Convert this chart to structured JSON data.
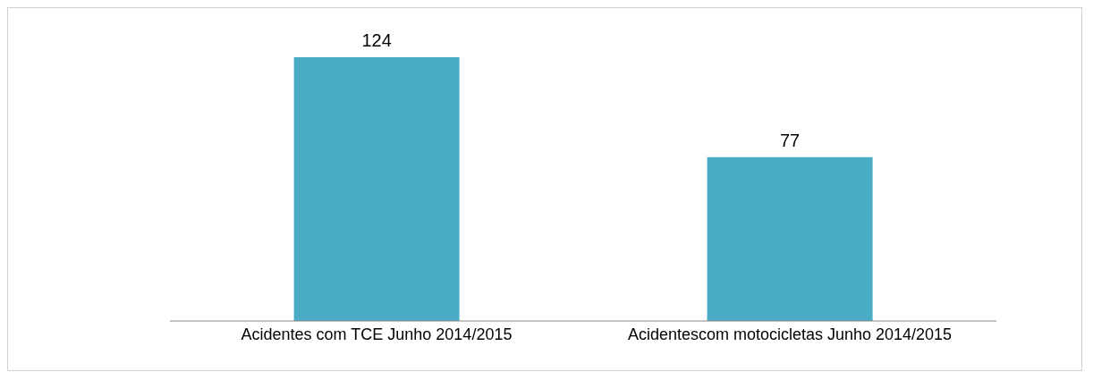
{
  "chart_data": {
    "type": "bar",
    "categories": [
      "Acidentes com TCE Junho 2014/2015",
      "Acidentescom motocicletas Junho 2014/2015"
    ],
    "values": [
      124,
      77
    ],
    "color": "#4bacc6",
    "data_labels": true
  }
}
